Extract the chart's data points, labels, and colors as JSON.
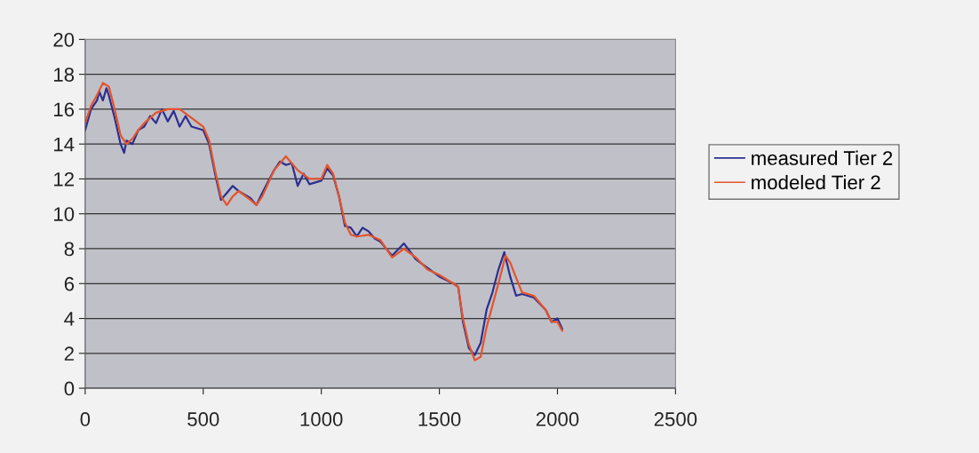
{
  "chart_data": {
    "type": "line",
    "xlim": [
      0,
      2500
    ],
    "xticks": [
      0,
      500,
      1000,
      1500,
      2000,
      2500
    ],
    "ylim": [
      0,
      20
    ],
    "yticks": [
      0,
      2,
      4,
      6,
      8,
      10,
      12,
      14,
      16,
      18,
      20
    ],
    "grid": "y",
    "legend": "right",
    "marker": "none",
    "line_style": "solid",
    "series": [
      {
        "name": "measured Tier 2",
        "color": "#2b2f8f",
        "x": [
          0,
          25,
          50,
          60,
          75,
          90,
          100,
          125,
          150,
          165,
          175,
          200,
          225,
          250,
          275,
          300,
          325,
          350,
          375,
          400,
          425,
          450,
          500,
          525,
          550,
          575,
          600,
          625,
          650,
          700,
          725,
          750,
          800,
          825,
          850,
          875,
          900,
          925,
          950,
          1000,
          1025,
          1050,
          1075,
          1100,
          1125,
          1150,
          1175,
          1200,
          1225,
          1250,
          1300,
          1350,
          1400,
          1450,
          1500,
          1560,
          1580,
          1600,
          1625,
          1650,
          1675,
          1700,
          1725,
          1750,
          1775,
          1800,
          1825,
          1850,
          1900,
          1950,
          1975,
          2000,
          2020
        ],
        "values": [
          14.8,
          16.0,
          16.5,
          17.0,
          16.5,
          17.2,
          16.8,
          15.5,
          14.0,
          13.5,
          14.2,
          14.0,
          14.8,
          15.0,
          15.6,
          15.2,
          16.0,
          15.3,
          15.9,
          15.0,
          15.6,
          15.0,
          14.8,
          14.0,
          12.3,
          10.8,
          11.2,
          11.6,
          11.3,
          10.9,
          10.5,
          11.2,
          12.5,
          13.0,
          12.8,
          12.9,
          11.6,
          12.3,
          11.7,
          11.9,
          12.6,
          12.2,
          11.0,
          9.3,
          9.2,
          8.7,
          9.2,
          9.0,
          8.6,
          8.4,
          7.6,
          8.3,
          7.4,
          6.9,
          6.4,
          6.0,
          5.8,
          3.8,
          2.3,
          1.9,
          2.6,
          4.5,
          5.5,
          6.8,
          7.8,
          6.4,
          5.3,
          5.4,
          5.2,
          4.5,
          3.8,
          4.0,
          3.4
        ]
      },
      {
        "name": "modeled Tier 2",
        "color": "#e4542c",
        "x": [
          0,
          25,
          50,
          75,
          100,
          125,
          150,
          175,
          200,
          225,
          250,
          300,
          350,
          400,
          450,
          500,
          525,
          550,
          575,
          600,
          625,
          650,
          700,
          725,
          750,
          800,
          850,
          900,
          950,
          1000,
          1025,
          1050,
          1075,
          1100,
          1125,
          1150,
          1200,
          1250,
          1300,
          1350,
          1400,
          1450,
          1500,
          1560,
          1580,
          1600,
          1625,
          1650,
          1675,
          1700,
          1750,
          1780,
          1800,
          1820,
          1850,
          1900,
          1950,
          1975,
          2000,
          2020
        ],
        "values": [
          15.2,
          16.2,
          16.8,
          17.5,
          17.3,
          16.0,
          14.5,
          14.0,
          14.3,
          14.8,
          15.2,
          15.8,
          16.0,
          16.0,
          15.5,
          15.0,
          14.2,
          12.5,
          11.0,
          10.5,
          11.0,
          11.3,
          10.8,
          10.5,
          11.0,
          12.5,
          13.3,
          12.5,
          12.0,
          12.0,
          12.8,
          12.3,
          11.0,
          9.5,
          8.8,
          8.7,
          8.8,
          8.5,
          7.5,
          8.0,
          7.5,
          6.8,
          6.5,
          6.0,
          5.8,
          4.0,
          2.5,
          1.6,
          1.8,
          3.5,
          6.0,
          7.6,
          7.2,
          6.5,
          5.5,
          5.3,
          4.5,
          3.8,
          3.8,
          3.3
        ]
      }
    ]
  }
}
